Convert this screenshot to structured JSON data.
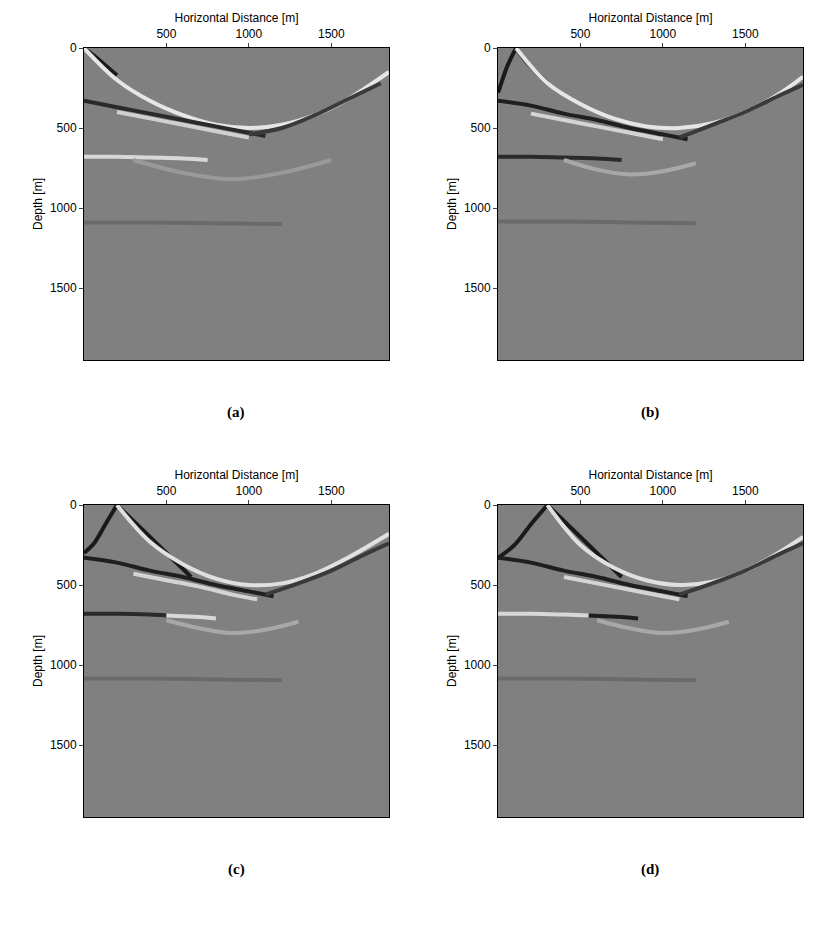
{
  "chart_data": [
    {
      "type": "line",
      "title": "(a)",
      "xlabel": "Horizontal Distance [m]",
      "ylabel": "Depth [m]",
      "xlim": [
        0,
        1850
      ],
      "ylim": [
        1950,
        0
      ],
      "xticks": [
        500,
        1000,
        1500
      ],
      "yticks": [
        0,
        500,
        1000,
        1500
      ],
      "grid": false,
      "series": [
        {
          "color": "#1a1a1a",
          "x": [
            0,
            50,
            120,
            200
          ],
          "values": [
            0,
            40,
            100,
            170
          ]
        },
        {
          "color": "#e6e6e6",
          "x": [
            0,
            200,
            400,
            600,
            800,
            1000,
            1200,
            1400,
            1600,
            1850
          ],
          "values": [
            0,
            200,
            330,
            420,
            480,
            500,
            480,
            420,
            320,
            150
          ]
        },
        {
          "color": "#2a2a2a",
          "x": [
            0,
            200,
            400,
            600,
            800,
            1000,
            1100
          ],
          "values": [
            330,
            370,
            410,
            450,
            490,
            530,
            550
          ]
        },
        {
          "color": "#3a3a3a",
          "x": [
            1000,
            1200,
            1400,
            1600,
            1800
          ],
          "values": [
            540,
            500,
            420,
            320,
            220
          ]
        },
        {
          "color": "#d0d0d0",
          "x": [
            200,
            400,
            600,
            800,
            1000
          ],
          "values": [
            400,
            440,
            480,
            520,
            560
          ]
        },
        {
          "color": "#d8d8d8",
          "x": [
            0,
            200,
            400,
            600,
            750
          ],
          "values": [
            680,
            680,
            685,
            690,
            700
          ]
        },
        {
          "color": "#9a9a9a",
          "x": [
            300,
            600,
            900,
            1200,
            1500
          ],
          "values": [
            700,
            780,
            820,
            780,
            700
          ]
        },
        {
          "color": "#6a6a6a",
          "x": [
            0,
            400,
            800,
            1200
          ],
          "values": [
            1090,
            1090,
            1095,
            1100
          ]
        }
      ]
    },
    {
      "type": "line",
      "title": "(b)",
      "xlabel": "Horizontal Distance [m]",
      "ylabel": "Depth [m]",
      "xlim": [
        0,
        1850
      ],
      "ylim": [
        1950,
        0
      ],
      "xticks": [
        500,
        1000,
        1500
      ],
      "yticks": [
        0,
        500,
        1000,
        1500
      ],
      "grid": false,
      "series": [
        {
          "color": "#1a1a1a",
          "x": [
            110,
            80,
            50,
            20,
            0
          ],
          "values": [
            0,
            60,
            130,
            220,
            280
          ]
        },
        {
          "color": "#1a1a1a",
          "x": [
            110,
            160,
            230,
            300
          ],
          "values": [
            0,
            70,
            150,
            220
          ]
        },
        {
          "color": "#e6e6e6",
          "x": [
            110,
            300,
            500,
            700,
            900,
            1100,
            1300,
            1500,
            1700,
            1850
          ],
          "values": [
            0,
            220,
            350,
            440,
            490,
            500,
            470,
            400,
            290,
            180
          ]
        },
        {
          "color": "#1f1f1f",
          "x": [
            0,
            200,
            400,
            600,
            800,
            1000,
            1150
          ],
          "values": [
            330,
            360,
            410,
            450,
            500,
            540,
            570
          ]
        },
        {
          "color": "#3a3a3a",
          "x": [
            1100,
            1300,
            1500,
            1700,
            1850
          ],
          "values": [
            560,
            480,
            400,
            300,
            230
          ]
        },
        {
          "color": "#d4d4d4",
          "x": [
            200,
            400,
            600,
            800,
            1000
          ],
          "values": [
            410,
            450,
            490,
            530,
            570
          ]
        },
        {
          "color": "#2a2a2a",
          "x": [
            0,
            200,
            400,
            600,
            750
          ],
          "values": [
            680,
            680,
            685,
            690,
            700
          ]
        },
        {
          "color": "#a8a8a8",
          "x": [
            400,
            600,
            800,
            1000,
            1200
          ],
          "values": [
            700,
            760,
            790,
            770,
            720
          ]
        },
        {
          "color": "#6a6a6a",
          "x": [
            0,
            400,
            800,
            1200
          ],
          "values": [
            1085,
            1085,
            1090,
            1095
          ]
        }
      ]
    },
    {
      "type": "line",
      "title": "(c)",
      "xlabel": "Horizontal Distance [m]",
      "ylabel": "Depth [m]",
      "xlim": [
        0,
        1850
      ],
      "ylim": [
        1950,
        0
      ],
      "xticks": [
        500,
        1000,
        1500
      ],
      "yticks": [
        0,
        500,
        1000,
        1500
      ],
      "grid": false,
      "series": [
        {
          "color": "#1a1a1a",
          "x": [
            200,
            130,
            60,
            0
          ],
          "values": [
            0,
            120,
            240,
            300
          ]
        },
        {
          "color": "#1a1a1a",
          "x": [
            200,
            350,
            500,
            650
          ],
          "values": [
            0,
            150,
            300,
            450
          ]
        },
        {
          "color": "#e0e0e0",
          "x": [
            200,
            400,
            600,
            800,
            1000,
            1200,
            1400,
            1600,
            1850
          ],
          "values": [
            0,
            230,
            370,
            460,
            500,
            490,
            430,
            330,
            180
          ]
        },
        {
          "color": "#1f1f1f",
          "x": [
            0,
            200,
            400,
            600,
            800,
            1000,
            1150
          ],
          "values": [
            330,
            360,
            410,
            450,
            500,
            540,
            570
          ]
        },
        {
          "color": "#3a3a3a",
          "x": [
            1100,
            1300,
            1500,
            1700,
            1850
          ],
          "values": [
            560,
            490,
            410,
            310,
            240
          ]
        },
        {
          "color": "#d4d4d4",
          "x": [
            300,
            500,
            700,
            900,
            1050
          ],
          "values": [
            430,
            470,
            510,
            560,
            590
          ]
        },
        {
          "color": "#2a2a2a",
          "x": [
            0,
            200,
            400,
            500
          ],
          "values": [
            680,
            680,
            685,
            690
          ]
        },
        {
          "color": "#d8d8d8",
          "x": [
            500,
            600,
            700,
            800
          ],
          "values": [
            690,
            695,
            700,
            710
          ]
        },
        {
          "color": "#a8a8a8",
          "x": [
            500,
            700,
            900,
            1100,
            1300
          ],
          "values": [
            720,
            770,
            800,
            780,
            730
          ]
        },
        {
          "color": "#6a6a6a",
          "x": [
            0,
            400,
            800,
            1200
          ],
          "values": [
            1085,
            1085,
            1090,
            1095
          ]
        }
      ]
    },
    {
      "type": "line",
      "title": "(d)",
      "xlabel": "Horizontal Distance [m]",
      "ylabel": "Depth [m]",
      "xlim": [
        0,
        1850
      ],
      "ylim": [
        1950,
        0
      ],
      "xticks": [
        500,
        1000,
        1500
      ],
      "yticks": [
        0,
        500,
        1000,
        1500
      ],
      "grid": false,
      "series": [
        {
          "color": "#1a1a1a",
          "x": [
            300,
            200,
            100,
            0
          ],
          "values": [
            0,
            120,
            250,
            330
          ]
        },
        {
          "color": "#1a1a1a",
          "x": [
            300,
            450,
            600,
            750
          ],
          "values": [
            0,
            150,
            300,
            450
          ]
        },
        {
          "color": "#e0e0e0",
          "x": [
            300,
            500,
            700,
            900,
            1100,
            1300,
            1500,
            1700,
            1850
          ],
          "values": [
            0,
            250,
            390,
            470,
            500,
            480,
            410,
            300,
            200
          ]
        },
        {
          "color": "#1f1f1f",
          "x": [
            0,
            200,
            400,
            600,
            800,
            1000,
            1150
          ],
          "values": [
            330,
            360,
            410,
            450,
            500,
            540,
            570
          ]
        },
        {
          "color": "#3a3a3a",
          "x": [
            1100,
            1300,
            1500,
            1700,
            1850
          ],
          "values": [
            560,
            490,
            410,
            310,
            240
          ]
        },
        {
          "color": "#d4d4d4",
          "x": [
            400,
            600,
            800,
            1000,
            1100
          ],
          "values": [
            450,
            490,
            530,
            570,
            590
          ]
        },
        {
          "color": "#d8d8d8",
          "x": [
            0,
            200,
            400,
            550
          ],
          "values": [
            680,
            680,
            685,
            690
          ]
        },
        {
          "color": "#1f1f1f",
          "x": [
            550,
            650,
            750,
            850
          ],
          "values": [
            690,
            695,
            700,
            710
          ]
        },
        {
          "color": "#a8a8a8",
          "x": [
            600,
            800,
            1000,
            1200,
            1400
          ],
          "values": [
            720,
            770,
            800,
            780,
            730
          ]
        },
        {
          "color": "#6a6a6a",
          "x": [
            0,
            400,
            800,
            1200
          ],
          "values": [
            1085,
            1085,
            1090,
            1095
          ]
        }
      ]
    }
  ]
}
